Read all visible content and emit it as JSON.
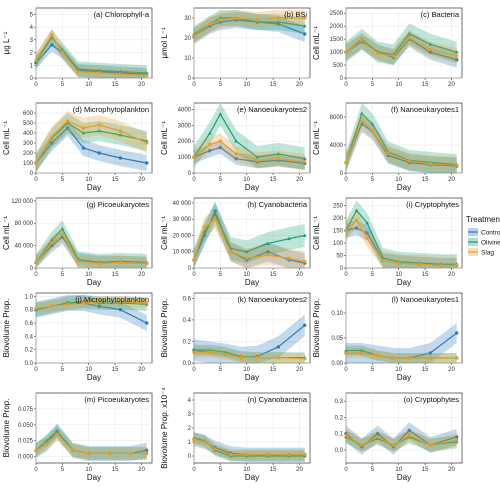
{
  "legend": {
    "title": "Treatment",
    "items": [
      {
        "name": "Control",
        "color": "#2b7bba"
      },
      {
        "name": "Olivine",
        "color": "#1a9e77"
      },
      {
        "name": "Slag",
        "color": "#e59d2a"
      }
    ]
  },
  "chart_data": [
    {
      "type": "line",
      "title": "(a) Chlorophyll-a",
      "xlabel": "",
      "ylabel": "μg L⁻¹",
      "xlim": [
        0,
        22
      ],
      "ylim": [
        0,
        5.5
      ],
      "yticks": [
        0,
        1,
        2,
        3,
        4,
        5
      ],
      "ytick_labels": [
        "0",
        "1",
        "2",
        "3",
        "4",
        "5"
      ],
      "x": [
        0,
        3,
        5,
        8,
        12,
        16,
        21
      ],
      "series": [
        {
          "name": "Control",
          "values": [
            1.2,
            2.6,
            2.0,
            0.6,
            0.5,
            0.4,
            0.3
          ],
          "band": 0.5
        },
        {
          "name": "Olivine",
          "values": [
            1.3,
            3.2,
            2.2,
            0.7,
            0.6,
            0.5,
            0.4
          ],
          "band": 0.6
        },
        {
          "name": "Slag",
          "values": [
            1.4,
            3.4,
            2.0,
            0.5,
            0.4,
            0.3,
            0.2
          ],
          "band": 0.5
        }
      ]
    },
    {
      "type": "line",
      "title": "(b) BSi",
      "xlabel": "",
      "ylabel": "μmol L⁻¹",
      "xlim": [
        0,
        22
      ],
      "ylim": [
        0,
        35
      ],
      "yticks": [
        0,
        10,
        20,
        30
      ],
      "ytick_labels": [
        "0",
        "10",
        "20",
        "30"
      ],
      "x": [
        0,
        3,
        5,
        8,
        12,
        16,
        21
      ],
      "series": [
        {
          "name": "Control",
          "values": [
            21,
            26,
            28,
            29,
            28,
            27,
            22
          ],
          "band": 4
        },
        {
          "name": "Olivine",
          "values": [
            22,
            27,
            30,
            30,
            28,
            28,
            26
          ],
          "band": 4
        },
        {
          "name": "Slag",
          "values": [
            21,
            27,
            29,
            30,
            29,
            30,
            30
          ],
          "band": 4
        }
      ]
    },
    {
      "type": "line",
      "title": "(c) Bacteria",
      "xlabel": "",
      "ylabel": "Cell mL⁻¹",
      "xlim": [
        0,
        22
      ],
      "ylim": [
        0,
        2700
      ],
      "yticks": [
        0,
        500,
        1000,
        1500,
        2000,
        2500
      ],
      "ytick_labels": [
        "0",
        "500",
        "1000",
        "1500",
        "2000",
        "2500"
      ],
      "x": [
        0,
        3,
        6,
        9,
        12,
        16,
        21
      ],
      "series": [
        {
          "name": "Control",
          "values": [
            1000,
            1400,
            1000,
            800,
            1500,
            1000,
            700
          ],
          "band": 300
        },
        {
          "name": "Olivine",
          "values": [
            1000,
            1500,
            1000,
            900,
            1700,
            1300,
            1000
          ],
          "band": 400
        },
        {
          "name": "Slag",
          "values": [
            1000,
            1450,
            950,
            850,
            1550,
            1100,
            850
          ],
          "band": 300
        }
      ]
    },
    {
      "type": "line",
      "title": "(d) Microphytoplankton",
      "xlabel": "Day",
      "ylabel": "Cell mL⁻¹",
      "xlim": [
        0,
        22
      ],
      "ylim": [
        0,
        700
      ],
      "yticks": [
        0,
        100,
        200,
        300,
        400,
        500,
        600
      ],
      "ytick_labels": [
        "0",
        "100",
        "200",
        "300",
        "400",
        "500",
        "600"
      ],
      "x": [
        0,
        3,
        6,
        9,
        12,
        16,
        21
      ],
      "series": [
        {
          "name": "Control",
          "values": [
            100,
            300,
            450,
            250,
            200,
            150,
            100
          ],
          "band": 80
        },
        {
          "name": "Olivine",
          "values": [
            100,
            350,
            500,
            400,
            420,
            380,
            320
          ],
          "band": 100
        },
        {
          "name": "Slag",
          "values": [
            100,
            360,
            520,
            450,
            480,
            420,
            300
          ],
          "band": 100
        }
      ]
    },
    {
      "type": "line",
      "title": "(e) Nanoeukaryotes2",
      "xlabel": "Day",
      "ylabel": "Cell mL⁻¹",
      "xlim": [
        0,
        22
      ],
      "ylim": [
        0,
        4400
      ],
      "yticks": [
        0,
        1000,
        2000,
        3000,
        4000
      ],
      "ytick_labels": [
        "0",
        "1000",
        "2000",
        "3000",
        "4000"
      ],
      "x": [
        0,
        3,
        5,
        8,
        12,
        16,
        21
      ],
      "series": [
        {
          "name": "Control",
          "values": [
            1000,
            1400,
            1600,
            900,
            700,
            800,
            600
          ],
          "band": 400
        },
        {
          "name": "Olivine",
          "values": [
            1000,
            2500,
            3700,
            2000,
            1000,
            1200,
            900
          ],
          "band": 700
        },
        {
          "name": "Slag",
          "values": [
            1000,
            1800,
            2000,
            1200,
            800,
            900,
            700
          ],
          "band": 500
        }
      ]
    },
    {
      "type": "line",
      "title": "(f) Nanoeukaryotes1",
      "xlabel": "Day",
      "ylabel": "Cell mL⁻¹",
      "xlim": [
        0,
        22
      ],
      "ylim": [
        0,
        10000
      ],
      "yticks": [
        0,
        4000,
        8000
      ],
      "ytick_labels": [
        "0",
        "4000",
        "8000"
      ],
      "x": [
        0,
        3,
        5,
        8,
        12,
        16,
        21
      ],
      "series": [
        {
          "name": "Control",
          "values": [
            1500,
            7000,
            6000,
            2500,
            1500,
            1200,
            1000
          ],
          "band": 1200
        },
        {
          "name": "Olivine",
          "values": [
            1500,
            8500,
            7000,
            3000,
            1800,
            1500,
            1200
          ],
          "band": 1500
        },
        {
          "name": "Slag",
          "values": [
            1500,
            7500,
            6000,
            2800,
            1700,
            1300,
            1100
          ],
          "band": 1200
        }
      ]
    },
    {
      "type": "line",
      "title": "(g) Picoeukaryotes",
      "xlabel": "Day",
      "ylabel": "Cell mL⁻¹",
      "xlim": [
        0,
        22
      ],
      "ylim": [
        0,
        125000
      ],
      "yticks": [
        0,
        40000,
        80000,
        120000
      ],
      "ytick_labels": [
        "0",
        "40 000",
        "80 000",
        "120 000"
      ],
      "x": [
        0,
        3,
        5,
        8,
        12,
        16,
        21
      ],
      "series": [
        {
          "name": "Control",
          "values": [
            10000,
            40000,
            55000,
            15000,
            10000,
            10000,
            8000
          ],
          "band": 12000
        },
        {
          "name": "Olivine",
          "values": [
            10000,
            50000,
            70000,
            15000,
            10000,
            12000,
            10000
          ],
          "band": 15000
        },
        {
          "name": "Slag",
          "values": [
            10000,
            45000,
            60000,
            12000,
            8000,
            10000,
            8000
          ],
          "band": 12000
        }
      ]
    },
    {
      "type": "line",
      "title": "(h) Cyanobacteria",
      "xlabel": "Day",
      "ylabel": "Cell mL⁻¹",
      "xlim": [
        0,
        22
      ],
      "ylim": [
        0,
        43000
      ],
      "yticks": [
        0,
        10000,
        20000,
        30000,
        40000
      ],
      "ytick_labels": [
        "0",
        "10 000",
        "20 000",
        "30 000",
        "40 000"
      ],
      "x": [
        0,
        2,
        4,
        7,
        10,
        14,
        18,
        21
      ],
      "series": [
        {
          "name": "Control",
          "values": [
            5000,
            20000,
            35000,
            10000,
            5000,
            10000,
            5000,
            3000
          ],
          "band": 6000
        },
        {
          "name": "Olivine",
          "values": [
            5000,
            22000,
            33000,
            12000,
            10000,
            15000,
            18000,
            20000
          ],
          "band": 7000
        },
        {
          "name": "Slag",
          "values": [
            5000,
            25000,
            30000,
            10000,
            6000,
            8000,
            6000,
            4000
          ],
          "band": 6000
        }
      ]
    },
    {
      "type": "line",
      "title": "(i) Cryptophytes",
      "xlabel": "Day",
      "ylabel": "Cell mL⁻¹",
      "xlim": [
        0,
        22
      ],
      "ylim": [
        0,
        280
      ],
      "yticks": [
        0,
        50,
        100,
        150,
        200,
        250
      ],
      "ytick_labels": [
        "0",
        "50",
        "100",
        "150",
        "200",
        "250"
      ],
      "x": [
        0,
        2,
        4,
        7,
        10,
        14,
        18,
        21
      ],
      "series": [
        {
          "name": "Control",
          "values": [
            150,
            160,
            140,
            30,
            20,
            15,
            10,
            10
          ],
          "band": 30
        },
        {
          "name": "Olivine",
          "values": [
            150,
            230,
            180,
            40,
            25,
            20,
            15,
            15
          ],
          "band": 40
        },
        {
          "name": "Slag",
          "values": [
            150,
            190,
            120,
            30,
            20,
            15,
            10,
            10
          ],
          "band": 35
        }
      ]
    },
    {
      "type": "line",
      "title": "(j) Microphytoplankton",
      "xlabel": "Day",
      "ylabel": "Biovolume Prop.",
      "xlim": [
        0,
        22
      ],
      "ylim": [
        0,
        1.05
      ],
      "yticks": [
        0,
        0.2,
        0.4,
        0.6,
        0.8,
        1.0
      ],
      "ytick_labels": [
        "0.0",
        "0.2",
        "0.4",
        "0.6",
        "0.8",
        "1.0"
      ],
      "x": [
        0,
        3,
        6,
        9,
        12,
        16,
        21
      ],
      "series": [
        {
          "name": "Control",
          "values": [
            0.8,
            0.85,
            0.9,
            0.9,
            0.85,
            0.8,
            0.6
          ],
          "band": 0.12
        },
        {
          "name": "Olivine",
          "values": [
            0.8,
            0.85,
            0.9,
            0.92,
            0.9,
            0.9,
            0.88
          ],
          "band": 0.1
        },
        {
          "name": "Slag",
          "values": [
            0.82,
            0.85,
            0.88,
            0.9,
            0.92,
            0.92,
            0.9
          ],
          "band": 0.08
        }
      ]
    },
    {
      "type": "line",
      "title": "(k) Nanoeukaryotes2",
      "xlabel": "Day",
      "ylabel": "Biovolume Prop.",
      "xlim": [
        0,
        22
      ],
      "ylim": [
        0,
        0.65
      ],
      "yticks": [
        0,
        0.2,
        0.4,
        0.6
      ],
      "ytick_labels": [
        "0.0",
        "0.2",
        "0.4",
        "0.6"
      ],
      "x": [
        0,
        3,
        6,
        9,
        12,
        16,
        21
      ],
      "series": [
        {
          "name": "Control",
          "values": [
            0.12,
            0.1,
            0.08,
            0.05,
            0.06,
            0.15,
            0.35
          ],
          "band": 0.1
        },
        {
          "name": "Olivine",
          "values": [
            0.12,
            0.12,
            0.1,
            0.06,
            0.05,
            0.05,
            0.05
          ],
          "band": 0.05
        },
        {
          "name": "Slag",
          "values": [
            0.1,
            0.1,
            0.08,
            0.05,
            0.05,
            0.05,
            0.04
          ],
          "band": 0.05
        }
      ]
    },
    {
      "type": "line",
      "title": "(l) Nanoeukaryotes1",
      "xlabel": "Day",
      "ylabel": "Biovolume Prop.",
      "xlim": [
        0,
        22
      ],
      "ylim": [
        0,
        0.14
      ],
      "yticks": [
        0,
        0.05,
        0.1
      ],
      "ytick_labels": [
        "0.00",
        "0.05",
        "0.10"
      ],
      "x": [
        0,
        3,
        6,
        9,
        12,
        16,
        21
      ],
      "series": [
        {
          "name": "Control",
          "values": [
            0.02,
            0.02,
            0.015,
            0.01,
            0.01,
            0.02,
            0.06
          ],
          "band": 0.02
        },
        {
          "name": "Olivine",
          "values": [
            0.025,
            0.025,
            0.015,
            0.01,
            0.01,
            0.01,
            0.01
          ],
          "band": 0.01
        },
        {
          "name": "Slag",
          "values": [
            0.02,
            0.02,
            0.015,
            0.01,
            0.01,
            0.01,
            0.01
          ],
          "band": 0.01
        }
      ]
    },
    {
      "type": "line",
      "title": "(m) Picoeukaryotes",
      "xlabel": "Day",
      "ylabel": "Biovolume Prop.",
      "xlim": [
        0,
        22
      ],
      "ylim": [
        -0.01,
        0.1
      ],
      "yticks": [
        0,
        0.025,
        0.05,
        0.075
      ],
      "ytick_labels": [
        "0.000",
        "0.025",
        "0.050",
        "0.075"
      ],
      "x": [
        0,
        2,
        4,
        7,
        10,
        14,
        18,
        21
      ],
      "series": [
        {
          "name": "Control",
          "values": [
            0.01,
            0.02,
            0.04,
            0.01,
            0.005,
            0.005,
            0.005,
            0.01
          ],
          "band": 0.012
        },
        {
          "name": "Olivine",
          "values": [
            0.01,
            0.025,
            0.04,
            0.01,
            0.005,
            0.005,
            0.005,
            0.005
          ],
          "band": 0.01
        },
        {
          "name": "Slag",
          "values": [
            0.01,
            0.02,
            0.035,
            0.01,
            0.005,
            0.005,
            0.005,
            0.005
          ],
          "band": 0.01
        }
      ]
    },
    {
      "type": "line",
      "title": "(n) Cyanobacteria",
      "xlabel": "Day",
      "ylabel": "Biovolume Prop. x10⁻⁴",
      "xlim": [
        0,
        22
      ],
      "ylim": [
        -0.5,
        4.5
      ],
      "yticks": [
        0,
        1,
        2,
        3,
        4
      ],
      "ytick_labels": [
        "0",
        "1",
        "2",
        "3",
        "4"
      ],
      "x": [
        0,
        2,
        4,
        7,
        10,
        14,
        18,
        21
      ],
      "series": [
        {
          "name": "Control",
          "values": [
            1.2,
            1.0,
            0.6,
            0.2,
            0.1,
            0.1,
            0.1,
            0.1
          ],
          "band": 0.5
        },
        {
          "name": "Olivine",
          "values": [
            1.3,
            1.1,
            0.4,
            0.0,
            0.0,
            0.0,
            0.0,
            0.0
          ],
          "band": 0.4
        },
        {
          "name": "Slag",
          "values": [
            1.2,
            1.0,
            0.5,
            0.1,
            0.1,
            0.1,
            0.1,
            0.1
          ],
          "band": 0.4
        }
      ]
    },
    {
      "type": "line",
      "title": "(o) Cryptophytes",
      "xlabel": "Day",
      "ylabel": "",
      "xlim": [
        0,
        22
      ],
      "ylim": [
        -0.08,
        0.35
      ],
      "yticks": [
        0,
        0.1,
        0.2,
        0.3
      ],
      "ytick_labels": [
        "0.0",
        "0.1",
        "0.2",
        "0.3"
      ],
      "x": [
        0,
        3,
        6,
        9,
        12,
        16,
        21
      ],
      "series": [
        {
          "name": "Control",
          "values": [
            0.1,
            0.02,
            0.1,
            0.02,
            0.12,
            0.03,
            0.08
          ],
          "band": 0.05
        },
        {
          "name": "Olivine",
          "values": [
            0.08,
            0.03,
            0.07,
            0.03,
            0.08,
            0.03,
            0.05
          ],
          "band": 0.04
        },
        {
          "name": "Slag",
          "values": [
            0.09,
            0.03,
            0.08,
            0.03,
            0.09,
            0.03,
            0.06
          ],
          "band": 0.04
        }
      ]
    }
  ]
}
